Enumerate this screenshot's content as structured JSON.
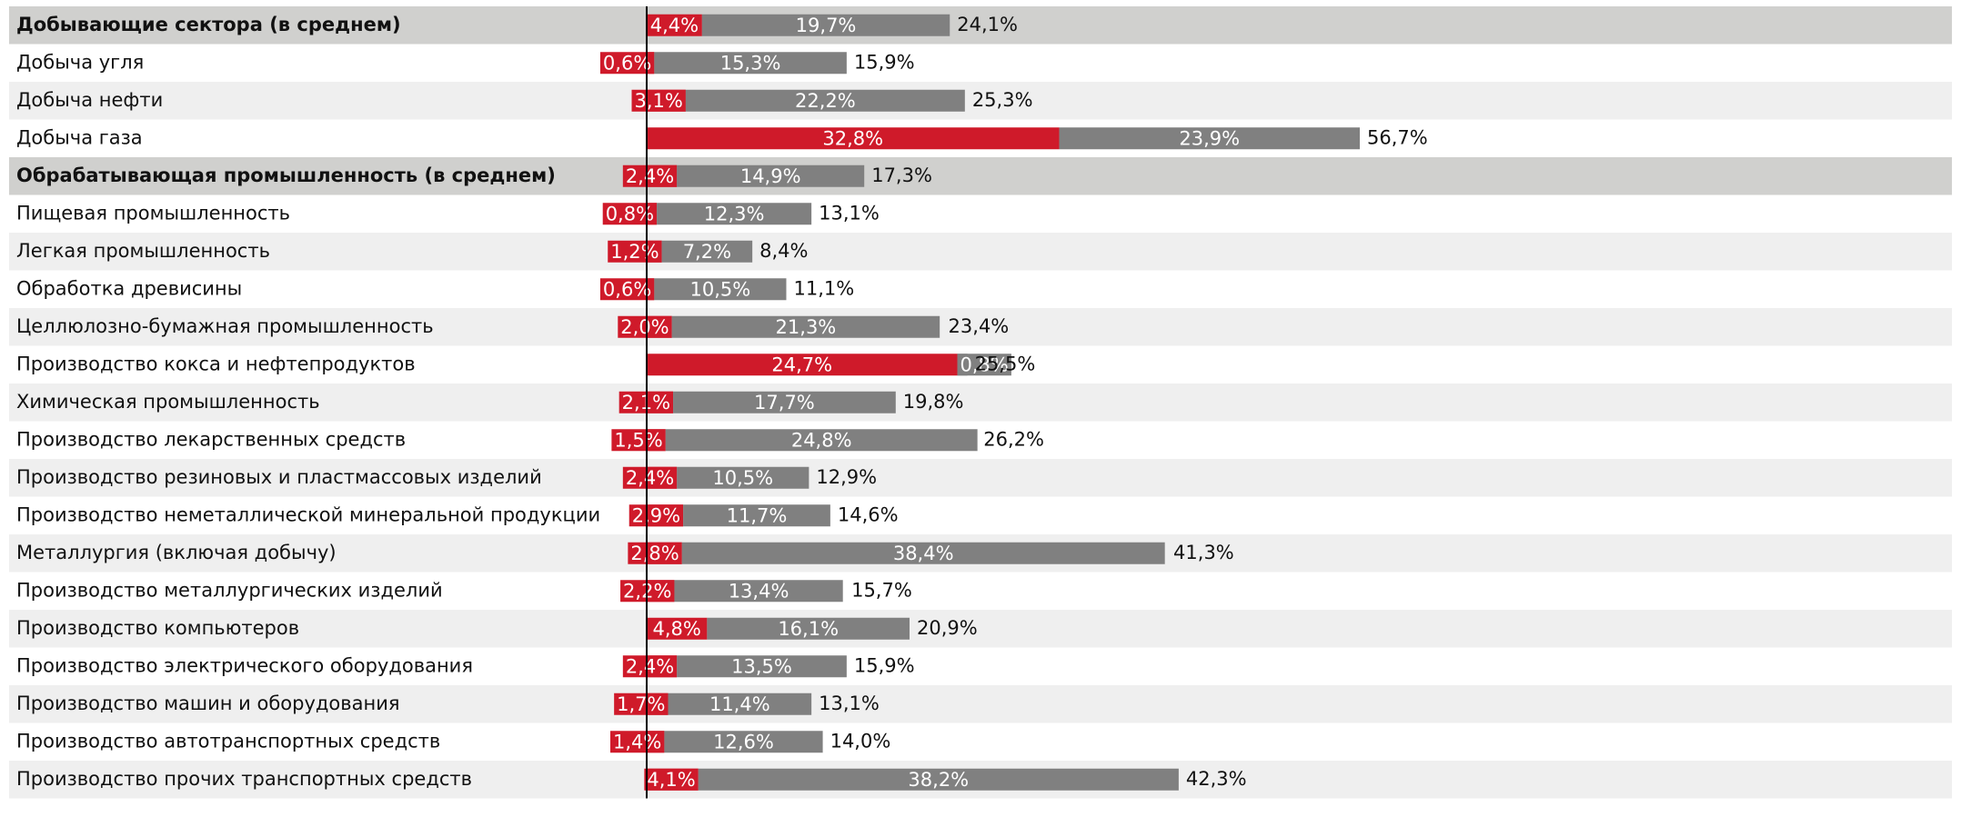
{
  "chart_data": {
    "type": "stacked-bar-horizontal",
    "categories": [
      "Добывающие сектора (в среднем)",
      "Добыча угля",
      "Добыча нефти",
      "Добыча газа",
      "Обрабатывающая промышленность (в среднем)",
      "Пищевая промышленность",
      "Легкая промышленность",
      "Обработка древисины",
      "Целлюлозно-бумажная промышленность",
      "Производство кокса и нефтепродуктов",
      "Химическая промышленность",
      "Производство лекарственных средств",
      "Производство резиновых и пластмассовых изделий",
      "Производство неметаллической минеральной продукции",
      "Металлургия (включая добычу)",
      "Производство металлургических изделий",
      "Производство компьютеров",
      "Производство электрического оборудования",
      "Производство машин и оборудования",
      "Производство автотранспортных средств",
      "Производство прочих транспортных средств"
    ],
    "emphasis": [
      true,
      false,
      false,
      false,
      true,
      false,
      false,
      false,
      false,
      false,
      false,
      false,
      false,
      false,
      false,
      false,
      false,
      false,
      false,
      false,
      false
    ],
    "series": [
      {
        "color": "#cf1a2a",
        "values": [
          4.4,
          0.6,
          3.1,
          32.8,
          2.4,
          0.8,
          1.2,
          0.6,
          2.0,
          24.7,
          2.1,
          1.5,
          2.4,
          2.9,
          2.8,
          2.2,
          4.8,
          2.4,
          1.7,
          1.4,
          4.1
        ],
        "value_labels": [
          "4,4%",
          "0,6%",
          "3,1%",
          "32,8%",
          "2,4%",
          "0,8%",
          "1,2%",
          "0,6%",
          "2,0%",
          "24,7%",
          "2,1%",
          "1,5%",
          "2,4%",
          "2,9%",
          "2,8%",
          "2,2%",
          "4,8%",
          "2,4%",
          "1,7%",
          "1,4%",
          "4,1%"
        ]
      },
      {
        "color": "#808080",
        "values": [
          19.7,
          15.3,
          22.2,
          23.9,
          14.9,
          12.3,
          7.2,
          10.5,
          21.3,
          0.8,
          17.7,
          24.8,
          10.5,
          11.7,
          38.4,
          13.4,
          16.1,
          13.5,
          11.4,
          12.6,
          38.2
        ],
        "value_labels": [
          "19,7%",
          "15,3%",
          "22,2%",
          "23,9%",
          "14,9%",
          "12,3%",
          "7,2%",
          "10,5%",
          "21,3%",
          "0,8%",
          "17,7%",
          "24,8%",
          "10,5%",
          "11,7%",
          "38,4%",
          "13,4%",
          "16,1%",
          "13,5%",
          "11,4%",
          "12,6%",
          "38,2%"
        ]
      }
    ],
    "totals": [
      24.1,
      15.9,
      25.3,
      56.7,
      17.3,
      13.1,
      8.4,
      11.1,
      23.4,
      25.5,
      19.8,
      26.2,
      12.9,
      14.6,
      41.3,
      15.7,
      20.9,
      15.9,
      13.1,
      14.0,
      42.3
    ],
    "total_labels": [
      "24,1%",
      "15,9%",
      "25,3%",
      "56,7%",
      "17,3%",
      "13,1%",
      "8,4%",
      "11,1%",
      "23,4%",
      "25,5%",
      "19,8%",
      "26,2%",
      "12,9%",
      "14,6%",
      "41,3%",
      "15,7%",
      "20,9%",
      "15,9%",
      "13,1%",
      "14,0%",
      "42,3%"
    ],
    "xlim": [
      0,
      60
    ]
  }
}
